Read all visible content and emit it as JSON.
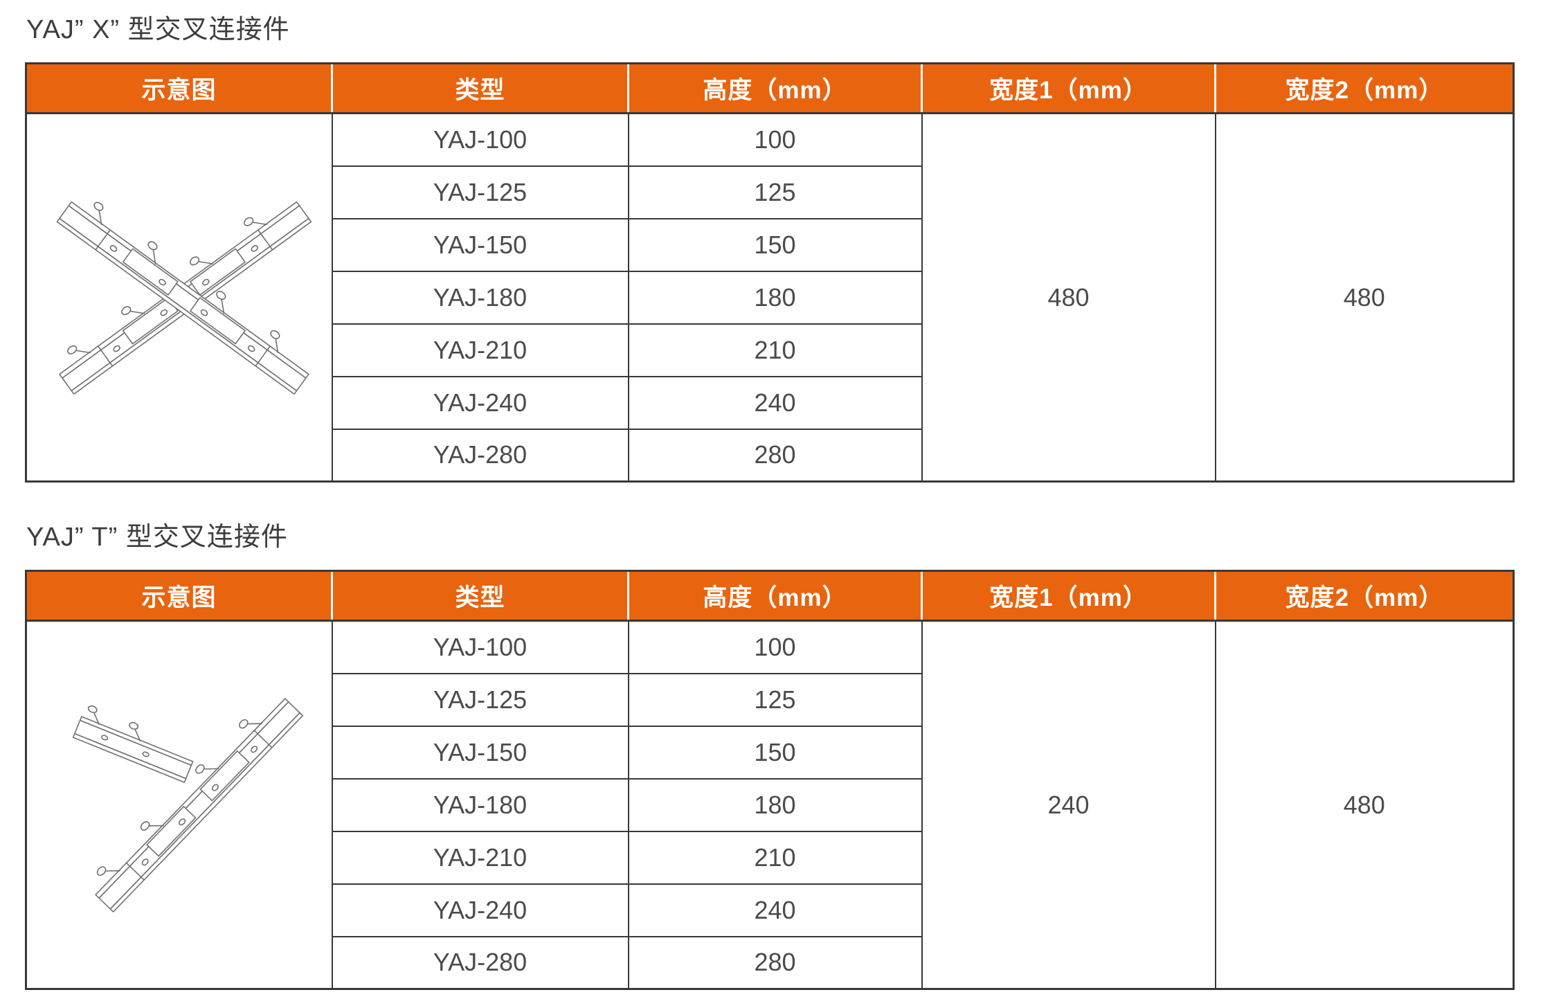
{
  "theme": {
    "header_bg": "#e8640e",
    "header_text": "#ffffff",
    "grid_line": "#383838",
    "body_text": "#4b4b4b",
    "title_text": "#3d3d3d",
    "diagram_line": "#6e6e6e"
  },
  "sections": [
    {
      "title": "YAJ” X” 型交叉连接件",
      "diagram": "x-cross-connector",
      "columns": [
        "示意图",
        "类型",
        "高度（mm）",
        "宽度1（mm）",
        "宽度2（mm）"
      ],
      "rows": [
        {
          "type": "YAJ-100",
          "height": "100"
        },
        {
          "type": "YAJ-125",
          "height": "125"
        },
        {
          "type": "YAJ-150",
          "height": "150"
        },
        {
          "type": "YAJ-180",
          "height": "180"
        },
        {
          "type": "YAJ-210",
          "height": "210"
        },
        {
          "type": "YAJ-240",
          "height": "240"
        },
        {
          "type": "YAJ-280",
          "height": "280"
        }
      ],
      "width1": "480",
      "width2": "480"
    },
    {
      "title": "YAJ” T” 型交叉连接件",
      "diagram": "t-cross-connector",
      "columns": [
        "示意图",
        "类型",
        "高度（mm）",
        "宽度1（mm）",
        "宽度2（mm）"
      ],
      "rows": [
        {
          "type": "YAJ-100",
          "height": "100"
        },
        {
          "type": "YAJ-125",
          "height": "125"
        },
        {
          "type": "YAJ-150",
          "height": "150"
        },
        {
          "type": "YAJ-180",
          "height": "180"
        },
        {
          "type": "YAJ-210",
          "height": "210"
        },
        {
          "type": "YAJ-240",
          "height": "240"
        },
        {
          "type": "YAJ-280",
          "height": "280"
        }
      ],
      "width1": "240",
      "width2": "480"
    }
  ]
}
